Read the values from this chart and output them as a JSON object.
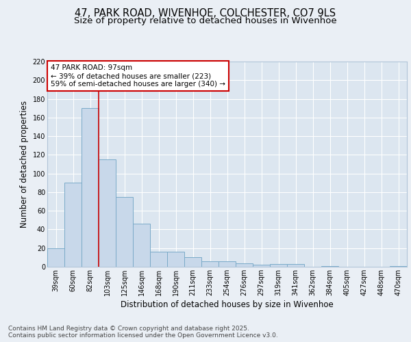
{
  "title_line1": "47, PARK ROAD, WIVENHOE, COLCHESTER, CO7 9LS",
  "title_line2": "Size of property relative to detached houses in Wivenhoe",
  "xlabel": "Distribution of detached houses by size in Wivenhoe",
  "ylabel": "Number of detached properties",
  "categories": [
    "39sqm",
    "60sqm",
    "82sqm",
    "103sqm",
    "125sqm",
    "146sqm",
    "168sqm",
    "190sqm",
    "211sqm",
    "233sqm",
    "254sqm",
    "276sqm",
    "297sqm",
    "319sqm",
    "341sqm",
    "362sqm",
    "384sqm",
    "405sqm",
    "427sqm",
    "448sqm",
    "470sqm"
  ],
  "values": [
    20,
    90,
    170,
    115,
    75,
    46,
    16,
    16,
    10,
    6,
    6,
    4,
    2,
    3,
    3,
    0,
    1,
    0,
    0,
    0,
    1
  ],
  "bar_color": "#c8d8ea",
  "bar_edge_color": "#7aaac8",
  "vline_x": 2.5,
  "vline_color": "#cc0000",
  "annotation_text": "47 PARK ROAD: 97sqm\n← 39% of detached houses are smaller (223)\n59% of semi-detached houses are larger (340) →",
  "annotation_box_color": "#ffffff",
  "annotation_box_edge_color": "#cc0000",
  "ylim": [
    0,
    220
  ],
  "yticks": [
    0,
    20,
    40,
    60,
    80,
    100,
    120,
    140,
    160,
    180,
    200,
    220
  ],
  "background_color": "#eaeff5",
  "plot_background_color": "#dce6f0",
  "grid_color": "#ffffff",
  "footer_text": "Contains HM Land Registry data © Crown copyright and database right 2025.\nContains public sector information licensed under the Open Government Licence v3.0.",
  "title_fontsize": 10.5,
  "subtitle_fontsize": 9.5,
  "axis_label_fontsize": 8.5,
  "tick_fontsize": 7,
  "annotation_fontsize": 7.5,
  "footer_fontsize": 6.5
}
